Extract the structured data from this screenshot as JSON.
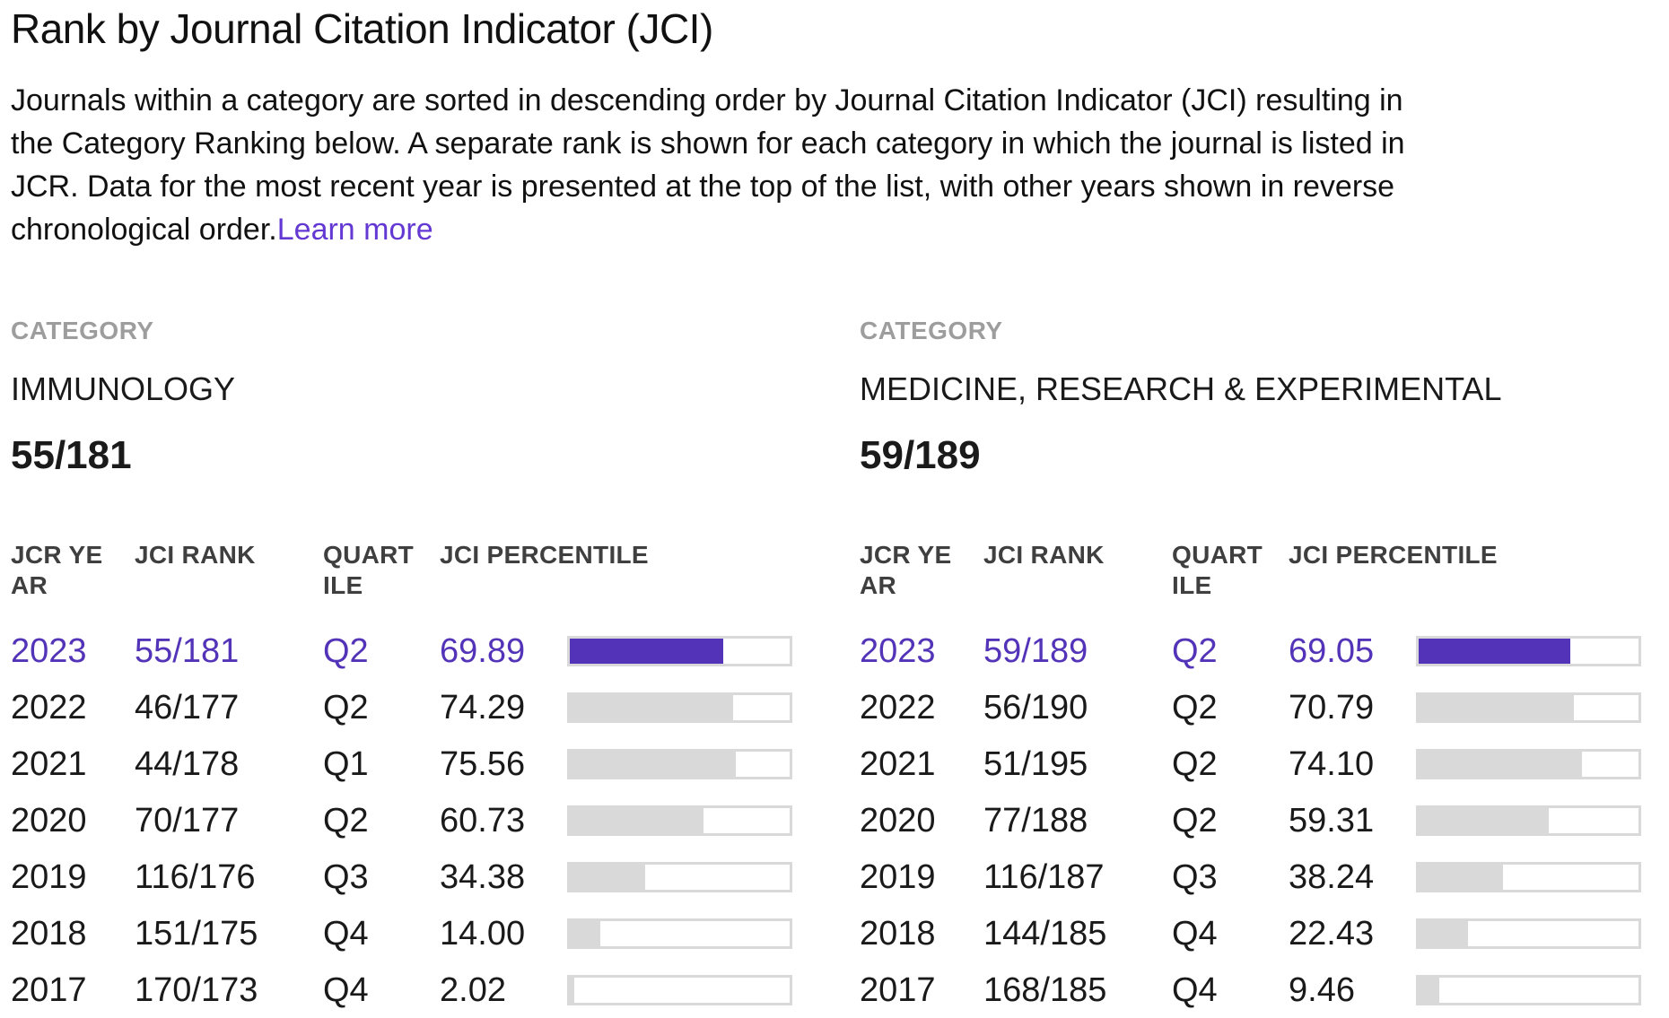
{
  "page": {
    "title": "Rank by Journal Citation Indicator (JCI)",
    "intro_text": "Journals within a category are sorted in descending order by Journal Citation Indicator (JCI) resulting in the Category Ranking below. A separate rank is shown for each category in which the journal is listed in JCR. Data for the most recent year is presented at the top of the list, with other years shown in reverse chronological order.",
    "learn_more_label": "Learn more"
  },
  "colors": {
    "accent_purple": "#5334b8",
    "link_purple": "#6438d2",
    "bar_grey": "#d9d9d9",
    "header_text_grey": "#3f3f3f",
    "category_label_grey": "#9d9d9d"
  },
  "table_headers": [
    "JCR YEAR",
    "JCI RANK",
    "QUARTILE",
    "JCI PERCENTILE"
  ],
  "categories": [
    {
      "label": "CATEGORY",
      "name": "IMMUNOLOGY",
      "rank": "55/181",
      "rows": [
        {
          "year": "2023",
          "rank": "55/181",
          "quartile": "Q2",
          "percentile": "69.89",
          "current": true
        },
        {
          "year": "2022",
          "rank": "46/177",
          "quartile": "Q2",
          "percentile": "74.29"
        },
        {
          "year": "2021",
          "rank": "44/178",
          "quartile": "Q1",
          "percentile": "75.56"
        },
        {
          "year": "2020",
          "rank": "70/177",
          "quartile": "Q2",
          "percentile": "60.73"
        },
        {
          "year": "2019",
          "rank": "116/176",
          "quartile": "Q3",
          "percentile": "34.38"
        },
        {
          "year": "2018",
          "rank": "151/175",
          "quartile": "Q4",
          "percentile": "14.00"
        },
        {
          "year": "2017",
          "rank": "170/173",
          "quartile": "Q4",
          "percentile": "2.02"
        }
      ]
    },
    {
      "label": "CATEGORY",
      "name": "MEDICINE, RESEARCH & EXPERIMENTAL",
      "rank": "59/189",
      "rows": [
        {
          "year": "2023",
          "rank": "59/189",
          "quartile": "Q2",
          "percentile": "69.05",
          "current": true
        },
        {
          "year": "2022",
          "rank": "56/190",
          "quartile": "Q2",
          "percentile": "70.79"
        },
        {
          "year": "2021",
          "rank": "51/195",
          "quartile": "Q2",
          "percentile": "74.10"
        },
        {
          "year": "2020",
          "rank": "77/188",
          "quartile": "Q2",
          "percentile": "59.31"
        },
        {
          "year": "2019",
          "rank": "116/187",
          "quartile": "Q3",
          "percentile": "38.24"
        },
        {
          "year": "2018",
          "rank": "144/185",
          "quartile": "Q4",
          "percentile": "22.43"
        },
        {
          "year": "2017",
          "rank": "168/185",
          "quartile": "Q4",
          "percentile": "9.46"
        }
      ]
    }
  ]
}
